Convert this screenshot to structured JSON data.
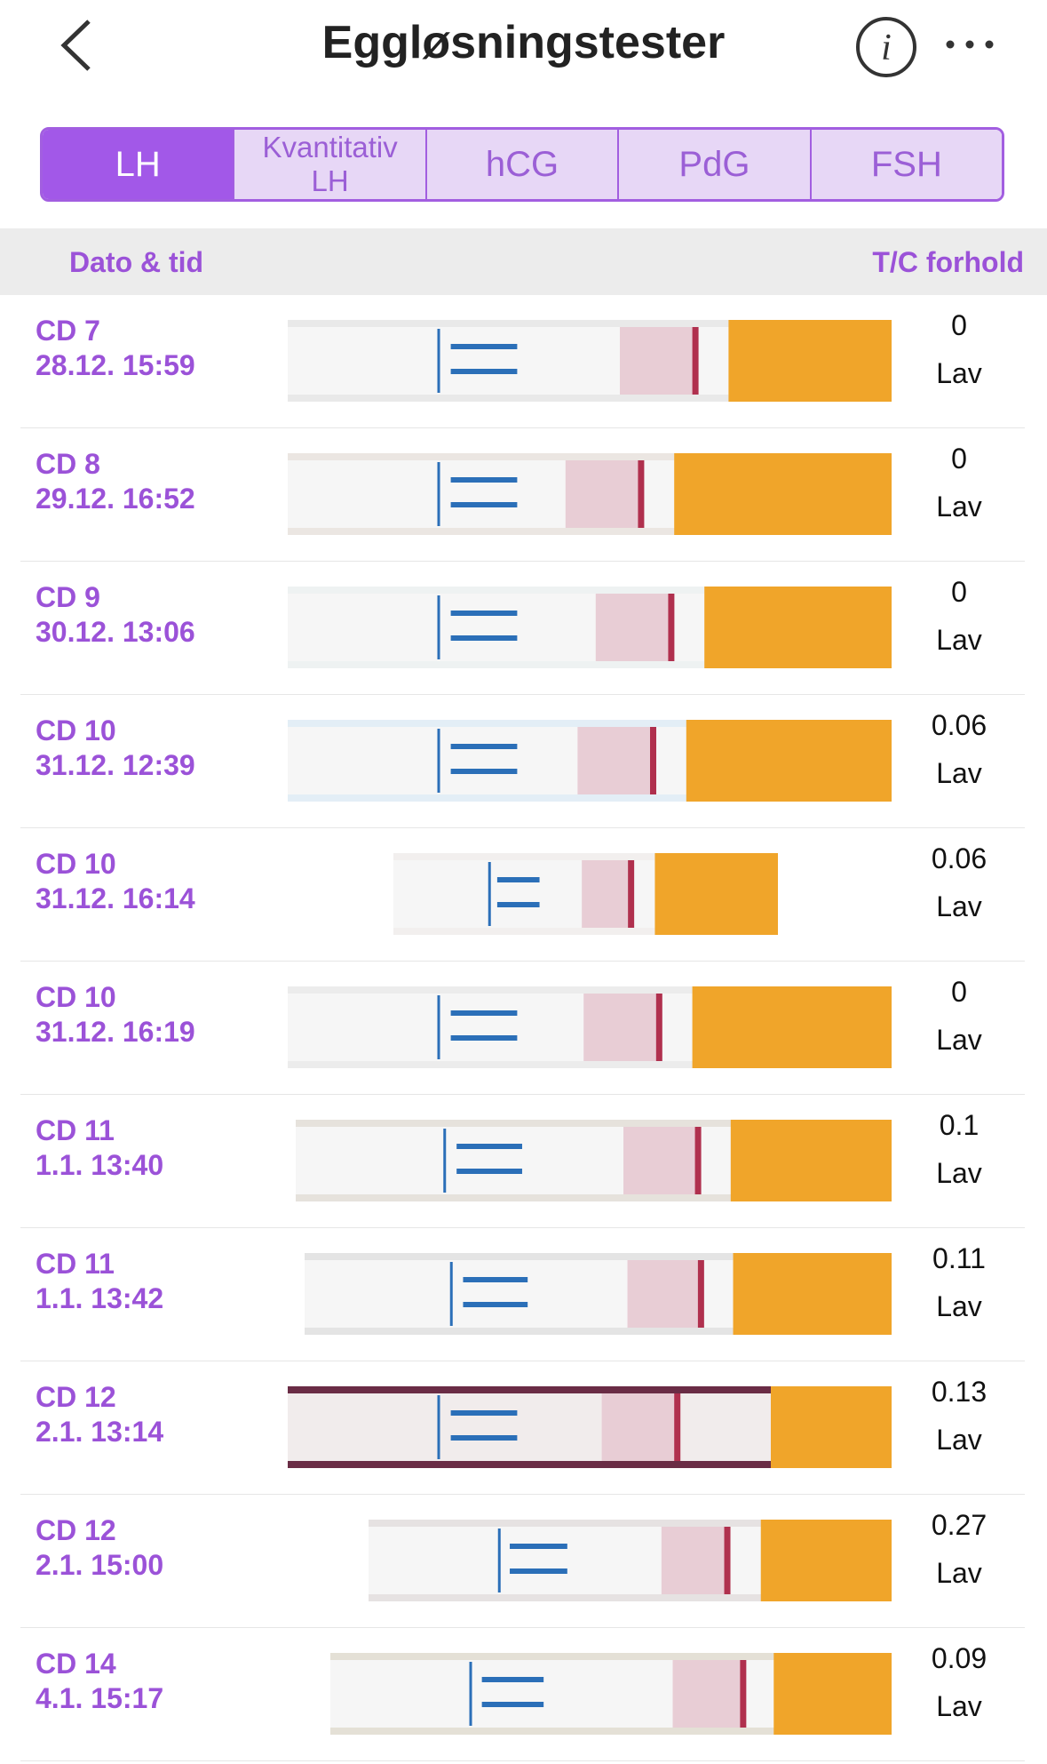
{
  "header": {
    "title": "Eggløsningstester"
  },
  "tabs": [
    [
      "LH"
    ],
    [
      "Kvantitativ",
      "LH"
    ],
    [
      "hCG"
    ],
    [
      "PdG"
    ],
    [
      "FSH"
    ]
  ],
  "table": {
    "columns": [
      "Dato & tid",
      "T/C forhold"
    ],
    "rows": [
      {
        "cd": "CD 7",
        "date": "28.12. 15:59",
        "ratio": 0,
        "level": "Lav"
      },
      {
        "cd": "CD 8",
        "date": "29.12. 16:52",
        "ratio": 0,
        "level": "Lav"
      },
      {
        "cd": "CD 9",
        "date": "30.12. 13:06",
        "ratio": 0,
        "level": "Lav"
      },
      {
        "cd": "CD 10",
        "date": "31.12. 12:39",
        "ratio": 0.06,
        "level": "Lav"
      },
      {
        "cd": "CD 10",
        "date": "31.12. 16:14",
        "ratio": 0.06,
        "level": "Lav"
      },
      {
        "cd": "CD 10",
        "date": "31.12. 16:19",
        "ratio": 0,
        "level": "Lav"
      },
      {
        "cd": "CD 11",
        "date": "1.1. 13:40",
        "ratio": 0.1,
        "level": "Lav"
      },
      {
        "cd": "CD 11",
        "date": "1.1. 13:42",
        "ratio": 0.11,
        "level": "Lav"
      },
      {
        "cd": "CD 12",
        "date": "2.1. 13:14",
        "ratio": 0.13,
        "level": "Lav"
      },
      {
        "cd": "CD 12",
        "date": "2.1. 15:00",
        "ratio": 0.27,
        "level": "Lav"
      },
      {
        "cd": "CD 14",
        "date": "4.1. 15:17",
        "ratio": 0.09,
        "level": "Lav"
      }
    ]
  }
}
